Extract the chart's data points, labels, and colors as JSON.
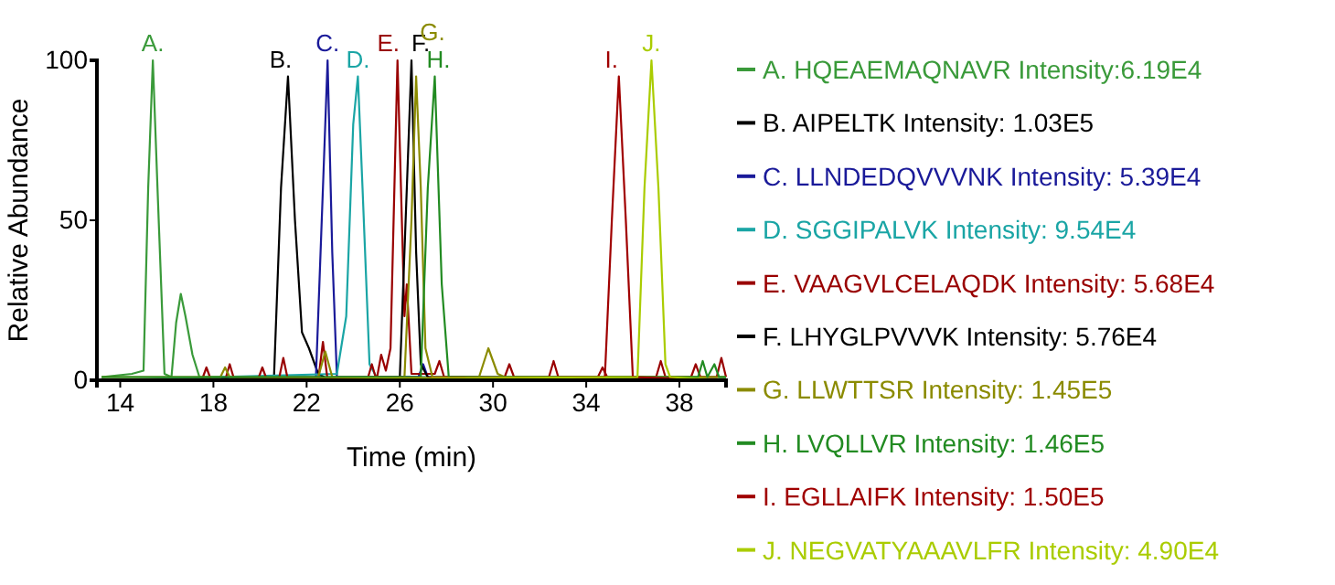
{
  "chart_data": {
    "type": "line",
    "xlabel": "Time (min)",
    "ylabel": "Relative Abundance",
    "xlim": [
      13,
      40
    ],
    "ylim": [
      0,
      100
    ],
    "xticks": [
      14,
      18,
      22,
      26,
      30,
      34,
      38
    ],
    "yticks": [
      0,
      50,
      100
    ],
    "grid": false,
    "legend": "right",
    "marker": "none",
    "line_style": "solid",
    "annotations": [
      {
        "text": "A.",
        "x": 15.4,
        "y": 100
      },
      {
        "text": "B.",
        "x": 21.2,
        "y": 95
      },
      {
        "text": "C.",
        "x": 22.9,
        "y": 100
      },
      {
        "text": "D.",
        "x": 24.2,
        "y": 95
      },
      {
        "text": "E.",
        "x": 25.9,
        "y": 100
      },
      {
        "text": "F.",
        "x": 26.5,
        "y": 100
      },
      {
        "text": "G.",
        "x": 26.7,
        "y": 95
      },
      {
        "text": "H.",
        "x": 27.5,
        "y": 95
      },
      {
        "text": "I.",
        "x": 35.4,
        "y": 95
      },
      {
        "text": "J.",
        "x": 36.8,
        "y": 100
      }
    ],
    "series": [
      {
        "name": "A. HQEAEMAQNAVR Intensity:6.19E4",
        "color": "#3a9a3a",
        "x": [
          13.2,
          14.5,
          15.0,
          15.2,
          15.4,
          15.6,
          15.9,
          16.2,
          16.4,
          16.6,
          16.8,
          17.1,
          17.4,
          18,
          40
        ],
        "values": [
          1,
          2,
          3,
          60,
          100,
          60,
          2,
          1,
          18,
          27,
          20,
          8,
          1,
          1,
          1
        ]
      },
      {
        "name": "B. AIPELTK Intensity: 1.03E5",
        "color": "#000000",
        "x": [
          13.2,
          20.6,
          20.9,
          21.2,
          21.5,
          21.8,
          22.1,
          22.5,
          23,
          40
        ],
        "values": [
          0,
          1,
          60,
          95,
          50,
          15,
          10,
          2,
          0,
          0
        ]
      },
      {
        "name": "C. LLNDEDQVVVNK Intensity: 5.39E4",
        "color": "#1a1a99",
        "x": [
          13.2,
          22.4,
          22.7,
          22.9,
          23.1,
          23.3,
          26.8,
          27.0,
          27.2,
          40
        ],
        "values": [
          0,
          1,
          60,
          100,
          40,
          1,
          1,
          5,
          1,
          0
        ]
      },
      {
        "name": "D. SGGIPALVK Intensity: 9.54E4",
        "color": "#1aa5a5",
        "x": [
          13.2,
          23.3,
          23.7,
          24.0,
          24.2,
          24.4,
          24.7,
          25,
          40
        ],
        "values": [
          0,
          2,
          20,
          80,
          95,
          60,
          5,
          1,
          0
        ]
      },
      {
        "name": "E. VAAGVLCELAQDK Intensity: 5.68E4",
        "color": "#990000",
        "x": [
          13.2,
          17.5,
          17.7,
          17.9,
          18.5,
          18.7,
          18.9,
          19.9,
          20.1,
          20.3,
          20.8,
          21.0,
          21.2,
          22.5,
          22.7,
          22.9,
          24.6,
          24.8,
          25.0,
          25.2,
          25.4,
          25.6,
          25.9,
          26.2,
          26.3,
          26.5,
          27.5,
          27.7,
          27.9,
          29.0,
          30.5,
          30.7,
          30.9,
          32.4,
          32.6,
          32.8,
          34.5,
          34.7,
          34.9,
          37,
          37.2,
          37.4,
          38.5,
          38.7,
          38.9,
          39.6,
          39.8,
          40
        ],
        "values": [
          0,
          0,
          4,
          0,
          0,
          5,
          0,
          0,
          4,
          0,
          0,
          7,
          0,
          0,
          12,
          0,
          0,
          5,
          0,
          8,
          3,
          10,
          100,
          20,
          30,
          2,
          2,
          6,
          1,
          1,
          1,
          5,
          1,
          1,
          6,
          1,
          1,
          4,
          1,
          1,
          6,
          1,
          1,
          5,
          1,
          1,
          7,
          1
        ]
      },
      {
        "name": "F. LHYGLPVVVK Intensity: 5.76E4",
        "color": "#000000",
        "x": [
          13.2,
          26.0,
          26.3,
          26.5,
          26.7,
          26.9,
          27.2,
          40
        ],
        "values": [
          0,
          1,
          60,
          100,
          40,
          5,
          1,
          0
        ]
      },
      {
        "name": "G. LLWTTSR Intensity: 1.45E5",
        "color": "#8b8b00",
        "x": [
          13.2,
          18.3,
          18.5,
          18.7,
          22.5,
          22.8,
          23.1,
          26.2,
          26.5,
          26.7,
          26.9,
          27.1,
          27.4,
          29.4,
          29.8,
          30.2,
          30.5,
          40
        ],
        "values": [
          1,
          1,
          4,
          1,
          1,
          9,
          1,
          1,
          50,
          95,
          60,
          10,
          1,
          1,
          10,
          2,
          1,
          1
        ]
      },
      {
        "name": "H. LVQLLVR Intensity: 1.46E5",
        "color": "#228b22",
        "x": [
          13.2,
          26.9,
          27.2,
          27.5,
          27.8,
          28.1,
          38.8,
          39.0,
          39.2,
          39.5,
          39.7,
          40
        ],
        "values": [
          1,
          1,
          60,
          95,
          30,
          1,
          1,
          6,
          1,
          5,
          1,
          1
        ]
      },
      {
        "name": "I. EGLLAIFK Intensity: 1.50E5",
        "color": "#a00000",
        "x": [
          13.2,
          34.8,
          35.1,
          35.4,
          35.7,
          36.0,
          40
        ],
        "values": [
          0,
          1,
          50,
          95,
          50,
          1,
          0
        ]
      },
      {
        "name": "J. NEGVATYAAAVLFR Intensity: 4.90E4",
        "color": "#aacc00",
        "x": [
          13.2,
          36.2,
          36.5,
          36.8,
          37.1,
          37.4,
          37.6,
          40
        ],
        "values": [
          0,
          1,
          60,
          100,
          60,
          5,
          1,
          0
        ]
      }
    ]
  }
}
